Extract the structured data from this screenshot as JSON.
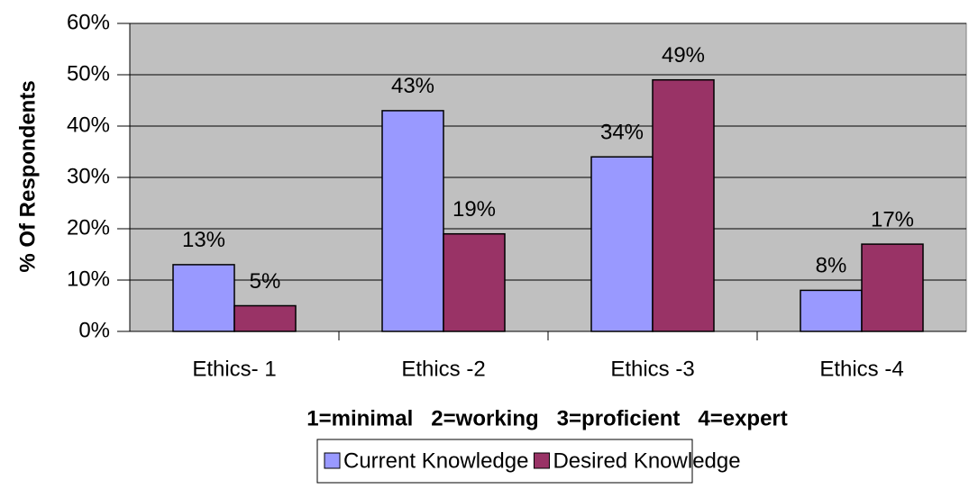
{
  "chart_data": {
    "type": "bar",
    "categories": [
      "Ethics- 1",
      "Ethics -2",
      "Ethics -3",
      "Ethics -4"
    ],
    "series": [
      {
        "name": "Current Knowledge",
        "color": "#9999ff",
        "values": [
          13,
          43,
          34,
          8
        ],
        "value_labels": [
          "13%",
          "43%",
          "34%",
          "8%"
        ]
      },
      {
        "name": "Desired Knowledge",
        "color": "#993366",
        "values": [
          5,
          19,
          49,
          17
        ],
        "value_labels": [
          "5%",
          "19%",
          "49%",
          "17%"
        ]
      }
    ],
    "x_label": "1=minimal   2=working   3=proficient   4=expert",
    "y_label": "% Of Respondents",
    "ylim": [
      0,
      60
    ],
    "yticks": [
      {
        "value": 0,
        "label": "0%"
      },
      {
        "value": 10,
        "label": "10%"
      },
      {
        "value": 20,
        "label": "20%"
      },
      {
        "value": 30,
        "label": "30%"
      },
      {
        "value": 40,
        "label": "40%"
      },
      {
        "value": 50,
        "label": "50%"
      },
      {
        "value": 60,
        "label": "60%"
      }
    ],
    "grid": true,
    "plot_background": "#c0c0c0",
    "legend": "bottom"
  }
}
